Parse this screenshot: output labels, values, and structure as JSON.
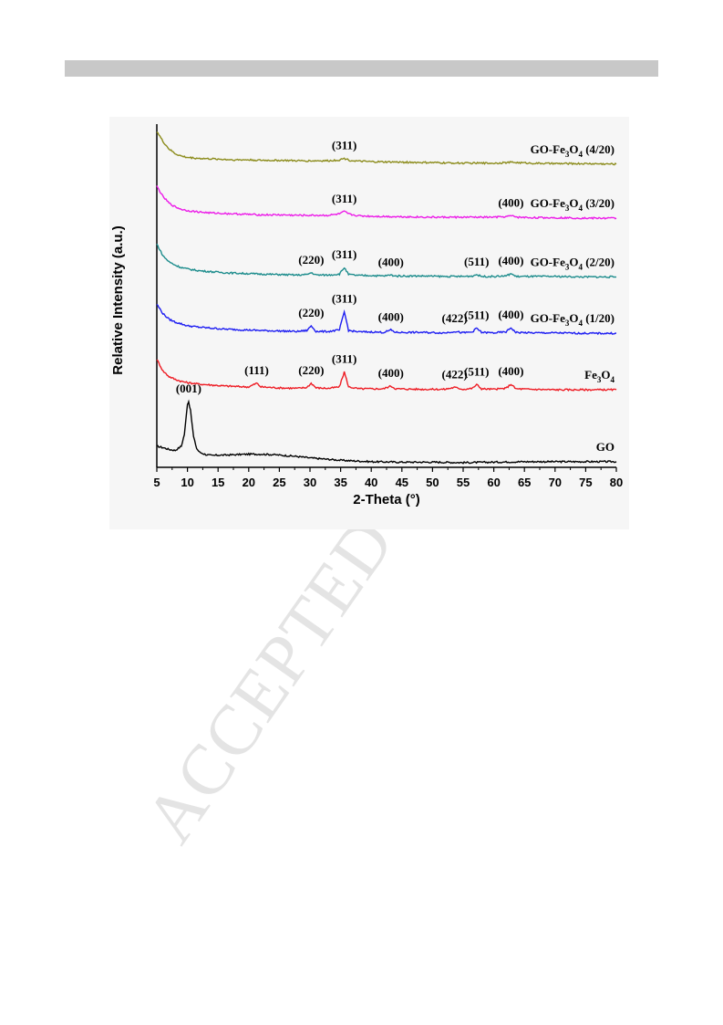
{
  "watermark": "ACCEPTED",
  "chart_data": {
    "type": "line",
    "title": "",
    "xlabel": "2-Theta (°)",
    "ylabel": "Relative Intensity (a.u.)",
    "xlim": [
      5,
      80
    ],
    "xticks": [
      "5",
      "10",
      "15",
      "20",
      "25",
      "30",
      "35",
      "40",
      "45",
      "50",
      "55",
      "60",
      "65",
      "70",
      "75",
      "80"
    ],
    "y_ticks_shown": false,
    "grid": false,
    "legend": "inline labels at right",
    "series": [
      {
        "name": "GO",
        "label_base": "GO",
        "label_sub": "",
        "label_base2": "",
        "label_sub2": "",
        "label_suffix": "",
        "color": "#000000",
        "offset": 0,
        "peaks": [
          {
            "x": 10.2,
            "label": "(001)"
          }
        ],
        "x": [
          5,
          6,
          7,
          8,
          9,
          9.5,
          10,
          10.2,
          10.5,
          11,
          11.5,
          12,
          13,
          14,
          15,
          16,
          18,
          20,
          22,
          24,
          26,
          28,
          30,
          32,
          35,
          40,
          45,
          50,
          55,
          60,
          65,
          70,
          75,
          80
        ],
        "y": [
          0.35,
          0.32,
          0.28,
          0.26,
          0.35,
          0.6,
          1.25,
          1.3,
          1.1,
          0.55,
          0.3,
          0.22,
          0.17,
          0.15,
          0.16,
          0.16,
          0.17,
          0.18,
          0.18,
          0.17,
          0.15,
          0.13,
          0.1,
          0.08,
          0.05,
          0.02,
          0.01,
          0.01,
          0,
          0.01,
          0.02,
          0.02,
          0.02,
          0.02
        ]
      },
      {
        "name": "Fe3O4",
        "label_base": "Fe",
        "label_sub": "3",
        "label_base2": "O",
        "label_sub2": "4",
        "label_suffix": "",
        "color": "#ee1c24",
        "offset": 1.55,
        "peaks": [
          {
            "x": 21.3,
            "label": "(111)"
          },
          {
            "x": 30.2,
            "label": "(220)"
          },
          {
            "x": 35.6,
            "label": "(311)"
          },
          {
            "x": 43.2,
            "label": "(400)"
          },
          {
            "x": 53.6,
            "label": "(422)"
          },
          {
            "x": 57.2,
            "label": "(511)"
          },
          {
            "x": 62.8,
            "label": "(400)"
          }
        ],
        "x": [
          5,
          6,
          7,
          8,
          9,
          10,
          12,
          14,
          16,
          18,
          20,
          21.3,
          22,
          25,
          28,
          29.5,
          30.2,
          31,
          33,
          34.8,
          35.6,
          36.3,
          38,
          40,
          42,
          43.2,
          44,
          48,
          52,
          53.6,
          55,
          56.5,
          57.2,
          58,
          60,
          62,
          62.8,
          63.6,
          66,
          70,
          75,
          80
        ],
        "y": [
          0.65,
          0.4,
          0.28,
          0.22,
          0.18,
          0.15,
          0.12,
          0.1,
          0.08,
          0.07,
          0.06,
          0.14,
          0.06,
          0.04,
          0.03,
          0.05,
          0.14,
          0.04,
          0.03,
          0.06,
          0.38,
          0.06,
          0.02,
          0.02,
          0.02,
          0.08,
          0.02,
          0.01,
          0.01,
          0.05,
          0.01,
          0.03,
          0.11,
          0.02,
          0.01,
          0.03,
          0.12,
          0.02,
          0.01,
          0,
          0,
          0
        ]
      },
      {
        "name": "GO-Fe3O4 (1/20)",
        "label_base": "GO-Fe",
        "label_sub": "3",
        "label_base2": "O",
        "label_sub2": "4",
        "label_suffix": " (1/20)",
        "color": "#1d1df2",
        "offset": 2.75,
        "peaks": [
          {
            "x": 30.2,
            "label": "(220)"
          },
          {
            "x": 35.6,
            "label": "(311)"
          },
          {
            "x": 43.2,
            "label": "(400)"
          },
          {
            "x": 53.6,
            "label": "(422)"
          },
          {
            "x": 57.2,
            "label": "(511)"
          },
          {
            "x": 62.8,
            "label": "(400)"
          }
        ],
        "x": [
          5,
          6,
          7,
          8,
          9,
          10,
          12,
          14,
          16,
          18,
          20,
          22,
          25,
          28,
          29.5,
          30.2,
          31,
          33,
          34.8,
          35.6,
          36.3,
          38,
          40,
          42,
          43.2,
          44,
          48,
          52,
          53.6,
          55,
          56.5,
          57.2,
          58,
          60,
          62,
          62.8,
          63.6,
          66,
          70,
          75,
          80
        ],
        "y": [
          0.62,
          0.42,
          0.3,
          0.24,
          0.2,
          0.16,
          0.13,
          0.11,
          0.09,
          0.08,
          0.07,
          0.06,
          0.05,
          0.04,
          0.06,
          0.16,
          0.04,
          0.04,
          0.07,
          0.46,
          0.06,
          0.03,
          0.03,
          0.02,
          0.07,
          0.02,
          0.02,
          0.01,
          0.04,
          0.01,
          0.03,
          0.11,
          0.02,
          0.01,
          0.03,
          0.12,
          0.02,
          0.01,
          0.01,
          0,
          0
        ]
      },
      {
        "name": "GO-Fe3O4 (2/20)",
        "label_base": "GO-Fe",
        "label_sub": "3",
        "label_base2": "O",
        "label_sub2": "4",
        "label_suffix": " (2/20)",
        "color": "#1c8c8c",
        "offset": 3.95,
        "peaks": [
          {
            "x": 30.2,
            "label": "(220)"
          },
          {
            "x": 35.6,
            "label": "(311)"
          },
          {
            "x": 43.2,
            "label": "(400)"
          },
          {
            "x": 57.2,
            "label": "(511)"
          },
          {
            "x": 62.8,
            "label": "(400)"
          }
        ],
        "x": [
          5,
          6,
          7,
          8,
          9,
          10,
          12,
          14,
          16,
          18,
          20,
          22,
          25,
          28,
          29.5,
          30.2,
          31,
          33,
          34.8,
          35.6,
          36.3,
          38,
          40,
          42,
          43.2,
          44,
          48,
          52,
          55,
          56.5,
          57.2,
          58,
          60,
          62,
          62.8,
          63.6,
          66,
          70,
          75,
          80
        ],
        "y": [
          0.7,
          0.45,
          0.32,
          0.25,
          0.2,
          0.17,
          0.13,
          0.11,
          0.09,
          0.08,
          0.07,
          0.06,
          0.05,
          0.04,
          0.05,
          0.09,
          0.04,
          0.04,
          0.06,
          0.2,
          0.05,
          0.03,
          0.03,
          0.02,
          0.04,
          0.02,
          0.02,
          0.01,
          0.01,
          0.02,
          0.05,
          0.01,
          0.01,
          0.02,
          0.07,
          0.01,
          0.01,
          0.01,
          0,
          0
        ]
      },
      {
        "name": "GO-Fe3O4 (3/20)",
        "label_base": "GO-Fe",
        "label_sub": "3",
        "label_base2": "O",
        "label_sub2": "4",
        "label_suffix": " (3/20)",
        "color": "#ec1ce8",
        "offset": 5.2,
        "peaks": [
          {
            "x": 35.6,
            "label": "(311)"
          },
          {
            "x": 62.8,
            "label": "(400)"
          }
        ],
        "x": [
          5,
          6,
          7,
          8,
          9,
          10,
          12,
          14,
          16,
          18,
          20,
          22,
          25,
          28,
          30,
          33,
          34.8,
          35.6,
          36.5,
          38,
          40,
          45,
          50,
          55,
          60,
          62,
          62.8,
          64,
          66,
          70,
          75,
          80
        ],
        "y": [
          0.68,
          0.46,
          0.32,
          0.24,
          0.19,
          0.16,
          0.13,
          0.11,
          0.1,
          0.09,
          0.08,
          0.07,
          0.07,
          0.06,
          0.06,
          0.06,
          0.09,
          0.14,
          0.08,
          0.05,
          0.04,
          0.03,
          0.02,
          0.02,
          0.02,
          0.03,
          0.05,
          0.02,
          0.01,
          0.01,
          0,
          0
        ]
      },
      {
        "name": "GO-Fe3O4 (4/20)",
        "label_base": "GO-Fe",
        "label_sub": "3",
        "label_base2": "O",
        "label_sub2": "4",
        "label_suffix": " (4/20)",
        "color": "#8c8c1c",
        "offset": 6.35,
        "peaks": [
          {
            "x": 35.6,
            "label": "(311)"
          }
        ],
        "x": [
          5,
          6,
          7,
          8,
          9,
          10,
          12,
          14,
          16,
          18,
          20,
          22,
          25,
          28,
          30,
          33,
          34.8,
          35.6,
          36.5,
          38,
          40,
          45,
          50,
          55,
          60,
          62,
          63,
          64,
          66,
          70,
          75,
          80
        ],
        "y": [
          0.7,
          0.48,
          0.32,
          0.22,
          0.17,
          0.14,
          0.12,
          0.11,
          0.1,
          0.09,
          0.09,
          0.08,
          0.08,
          0.07,
          0.07,
          0.07,
          0.09,
          0.12,
          0.08,
          0.06,
          0.05,
          0.04,
          0.03,
          0.02,
          0.02,
          0.03,
          0.04,
          0.03,
          0.02,
          0.01,
          0.01,
          0
        ]
      }
    ]
  }
}
